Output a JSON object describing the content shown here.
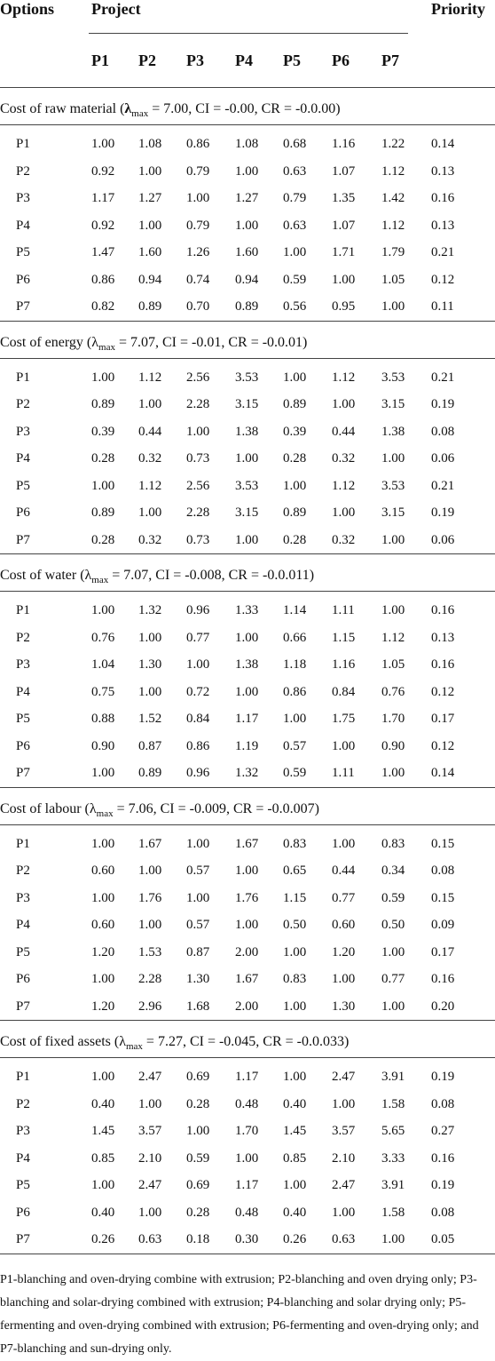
{
  "header": {
    "options": "Options",
    "project": "Project",
    "priority": "Priority",
    "columns": [
      "P1",
      "P2",
      "P3",
      "P4",
      "P5",
      "P6",
      "P7"
    ]
  },
  "sections": [
    {
      "title": "Cost of raw material (",
      "symbol": "λ",
      "subscript": "max",
      "title_rest": " = 7.00, CI = -0.00, CR = -0.0.00)",
      "rows": [
        {
          "label": "P1",
          "values": [
            "1.00",
            "1.08",
            "0.86",
            "1.08",
            "0.68",
            "1.16",
            "1.22"
          ],
          "priority": "0.14"
        },
        {
          "label": "P2",
          "values": [
            "0.92",
            "1.00",
            "0.79",
            "1.00",
            "0.63",
            "1.07",
            "1.12"
          ],
          "priority": "0.13"
        },
        {
          "label": "P3",
          "values": [
            "1.17",
            "1.27",
            "1.00",
            "1.27",
            "0.79",
            "1.35",
            "1.42"
          ],
          "priority": "0.16"
        },
        {
          "label": "P4",
          "values": [
            "0.92",
            "1.00",
            "0.79",
            "1.00",
            "0.63",
            "1.07",
            "1.12"
          ],
          "priority": "0.13"
        },
        {
          "label": "P5",
          "values": [
            "1.47",
            "1.60",
            "1.26",
            "1.60",
            "1.00",
            "1.71",
            "1.79"
          ],
          "priority": "0.21"
        },
        {
          "label": "P6",
          "values": [
            "0.86",
            "0.94",
            "0.74",
            "0.94",
            "0.59",
            "1.00",
            "1.05"
          ],
          "priority": "0.12"
        },
        {
          "label": "P7",
          "values": [
            "0.82",
            "0.89",
            "0.70",
            "0.89",
            "0.56",
            "0.95",
            "1.00"
          ],
          "priority": "0.11"
        }
      ]
    },
    {
      "title": "Cost of energy (",
      "symbol": "λ",
      "subscript": "max",
      "title_rest": " = 7.07, CI = -0.01, CR = -0.0.01)",
      "rows": [
        {
          "label": "P1",
          "values": [
            "1.00",
            "1.12",
            "2.56",
            "3.53",
            "1.00",
            "1.12",
            "3.53"
          ],
          "priority": "0.21"
        },
        {
          "label": "P2",
          "values": [
            "0.89",
            "1.00",
            "2.28",
            "3.15",
            "0.89",
            "1.00",
            "3.15"
          ],
          "priority": "0.19"
        },
        {
          "label": "P3",
          "values": [
            "0.39",
            "0.44",
            "1.00",
            "1.38",
            "0.39",
            "0.44",
            "1.38"
          ],
          "priority": "0.08"
        },
        {
          "label": "P4",
          "values": [
            "0.28",
            "0.32",
            "0.73",
            "1.00",
            "0.28",
            "0.32",
            "1.00"
          ],
          "priority": "0.06"
        },
        {
          "label": "P5",
          "values": [
            "1.00",
            "1.12",
            "2.56",
            "3.53",
            "1.00",
            "1.12",
            "3.53"
          ],
          "priority": "0.21"
        },
        {
          "label": "P6",
          "values": [
            "0.89",
            "1.00",
            "2.28",
            "3.15",
            "0.89",
            "1.00",
            "3.15"
          ],
          "priority": "0.19"
        },
        {
          "label": "P7",
          "values": [
            "0.28",
            "0.32",
            "0.73",
            "1.00",
            "0.28",
            "0.32",
            "1.00"
          ],
          "priority": "0.06"
        }
      ]
    },
    {
      "title": "Cost of water (",
      "symbol": "λ",
      "subscript": "max",
      "title_rest": " = 7.07, CI = -0.008, CR = -0.0.011)",
      "rows": [
        {
          "label": "P1",
          "values": [
            "1.00",
            "1.32",
            "0.96",
            "1.33",
            "1.14",
            "1.11",
            "1.00"
          ],
          "priority": "0.16"
        },
        {
          "label": "P2",
          "values": [
            "0.76",
            "1.00",
            "0.77",
            "1.00",
            "0.66",
            "1.15",
            "1.12"
          ],
          "priority": "0.13"
        },
        {
          "label": "P3",
          "values": [
            "1.04",
            "1.30",
            "1.00",
            "1.38",
            "1.18",
            "1.16",
            "1.05"
          ],
          "priority": "0.16"
        },
        {
          "label": "P4",
          "values": [
            "0.75",
            "1.00",
            "0.72",
            "1.00",
            "0.86",
            "0.84",
            "0.76"
          ],
          "priority": "0.12"
        },
        {
          "label": "P5",
          "values": [
            "0.88",
            "1.52",
            "0.84",
            "1.17",
            "1.00",
            "1.75",
            "1.70"
          ],
          "priority": "0.17"
        },
        {
          "label": "P6",
          "values": [
            "0.90",
            "0.87",
            "0.86",
            "1.19",
            "0.57",
            "1.00",
            "0.90"
          ],
          "priority": "0.12"
        },
        {
          "label": "P7",
          "values": [
            "1.00",
            "0.89",
            "0.96",
            "1.32",
            "0.59",
            "1.11",
            "1.00"
          ],
          "priority": "0.14"
        }
      ]
    },
    {
      "title": "Cost of labour (",
      "symbol": "λ",
      "subscript": "max",
      "title_rest": " = 7.06, CI = -0.009, CR = -0.0.007)",
      "rows": [
        {
          "label": "P1",
          "values": [
            "1.00",
            "1.67",
            "1.00",
            "1.67",
            "0.83",
            "1.00",
            "0.83"
          ],
          "priority": "0.15"
        },
        {
          "label": "P2",
          "values": [
            "0.60",
            "1.00",
            "0.57",
            "1.00",
            "0.65",
            "0.44",
            "0.34"
          ],
          "priority": "0.08"
        },
        {
          "label": "P3",
          "values": [
            "1.00",
            "1.76",
            "1.00",
            "1.76",
            "1.15",
            "0.77",
            "0.59"
          ],
          "priority": "0.15"
        },
        {
          "label": "P4",
          "values": [
            "0.60",
            "1.00",
            "0.57",
            "1.00",
            "0.50",
            "0.60",
            "0.50"
          ],
          "priority": "0.09"
        },
        {
          "label": "P5",
          "values": [
            "1.20",
            "1.53",
            "0.87",
            "2.00",
            "1.00",
            "1.20",
            "1.00"
          ],
          "priority": "0.17"
        },
        {
          "label": "P6",
          "values": [
            "1.00",
            "2.28",
            "1.30",
            "1.67",
            "0.83",
            "1.00",
            "0.77"
          ],
          "priority": "0.16"
        },
        {
          "label": "P7",
          "values": [
            "1.20",
            "2.96",
            "1.68",
            "2.00",
            "1.00",
            "1.30",
            "1.00"
          ],
          "priority": "0.20"
        }
      ]
    },
    {
      "title": "Cost of fixed assets (",
      "symbol": "λ",
      "subscript": "max",
      "title_rest": " = 7.27, CI = -0.045, CR = -0.0.033)",
      "rows": [
        {
          "label": "P1",
          "values": [
            "1.00",
            "2.47",
            "0.69",
            "1.17",
            "1.00",
            "2.47",
            "3.91"
          ],
          "priority": "0.19"
        },
        {
          "label": "P2",
          "values": [
            "0.40",
            "1.00",
            "0.28",
            "0.48",
            "0.40",
            "1.00",
            "1.58"
          ],
          "priority": "0.08"
        },
        {
          "label": "P3",
          "values": [
            "1.45",
            "3.57",
            "1.00",
            "1.70",
            "1.45",
            "3.57",
            "5.65"
          ],
          "priority": "0.27"
        },
        {
          "label": "P4",
          "values": [
            "0.85",
            "2.10",
            "0.59",
            "1.00",
            "0.85",
            "2.10",
            "3.33"
          ],
          "priority": "0.16"
        },
        {
          "label": "P5",
          "values": [
            "1.00",
            "2.47",
            "0.69",
            "1.17",
            "1.00",
            "2.47",
            "3.91"
          ],
          "priority": "0.19"
        },
        {
          "label": "P6",
          "values": [
            "0.40",
            "1.00",
            "0.28",
            "0.48",
            "0.40",
            "1.00",
            "1.58"
          ],
          "priority": "0.08"
        },
        {
          "label": "P7",
          "values": [
            "0.26",
            "0.63",
            "0.18",
            "0.30",
            "0.26",
            "0.63",
            "1.00"
          ],
          "priority": "0.05"
        }
      ]
    }
  ],
  "footnote": "P1-blanching and oven-drying combine with extrusion; P2-blanching and oven drying only; P3-blanching and solar-drying combined with extrusion; P4-blanching and solar drying only; P5-fermenting and oven-drying combined with extrusion; P6-fermenting and oven-drying only; and P7-blanching and sun-drying only."
}
